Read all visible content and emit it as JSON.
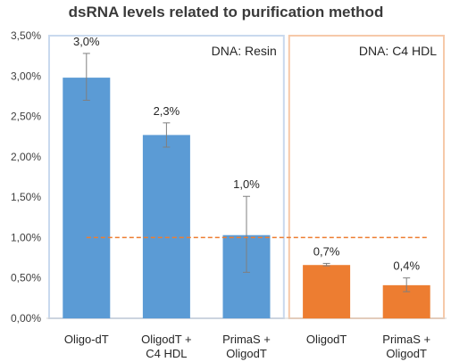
{
  "chart_data": {
    "type": "bar",
    "title": "dsRNA levels related to purification method",
    "ylim": [
      0,
      3.5
    ],
    "yticks": [
      "0,00%",
      "0,50%",
      "1,00%",
      "1,50%",
      "2,00%",
      "2,50%",
      "3,00%",
      "3,50%"
    ],
    "categories": [
      [
        "Oligo-dT"
      ],
      [
        "OligodT +",
        "C4 HDL"
      ],
      [
        "PrimaS +",
        "OligodT"
      ],
      [
        "OligodT"
      ],
      [
        "PrimaS +",
        "OligodT"
      ]
    ],
    "values": [
      2.98,
      2.27,
      1.03,
      0.66,
      0.41
    ],
    "error_low": [
      2.7,
      2.12,
      0.57,
      0.65,
      0.33
    ],
    "error_high": [
      3.28,
      2.42,
      1.51,
      0.68,
      0.5
    ],
    "data_labels": [
      "3,0%",
      "2,3%",
      "1,0%",
      "0,7%",
      "0,4%"
    ],
    "bar_colors": [
      "#5b9bd5",
      "#5b9bd5",
      "#5b9bd5",
      "#ed7d31",
      "#ed7d31"
    ],
    "groups": [
      {
        "label": "DNA: Resin",
        "from": 0,
        "to": 2,
        "border_color": "#c9d9ee"
      },
      {
        "label": "DNA: C4 HDL",
        "from": 3,
        "to": 4,
        "border_color": "#f6c9a9"
      }
    ],
    "reference_line": {
      "value": 1.0,
      "color": "#ed7d31",
      "style": "dashed"
    },
    "legend": "none",
    "grid": false
  }
}
